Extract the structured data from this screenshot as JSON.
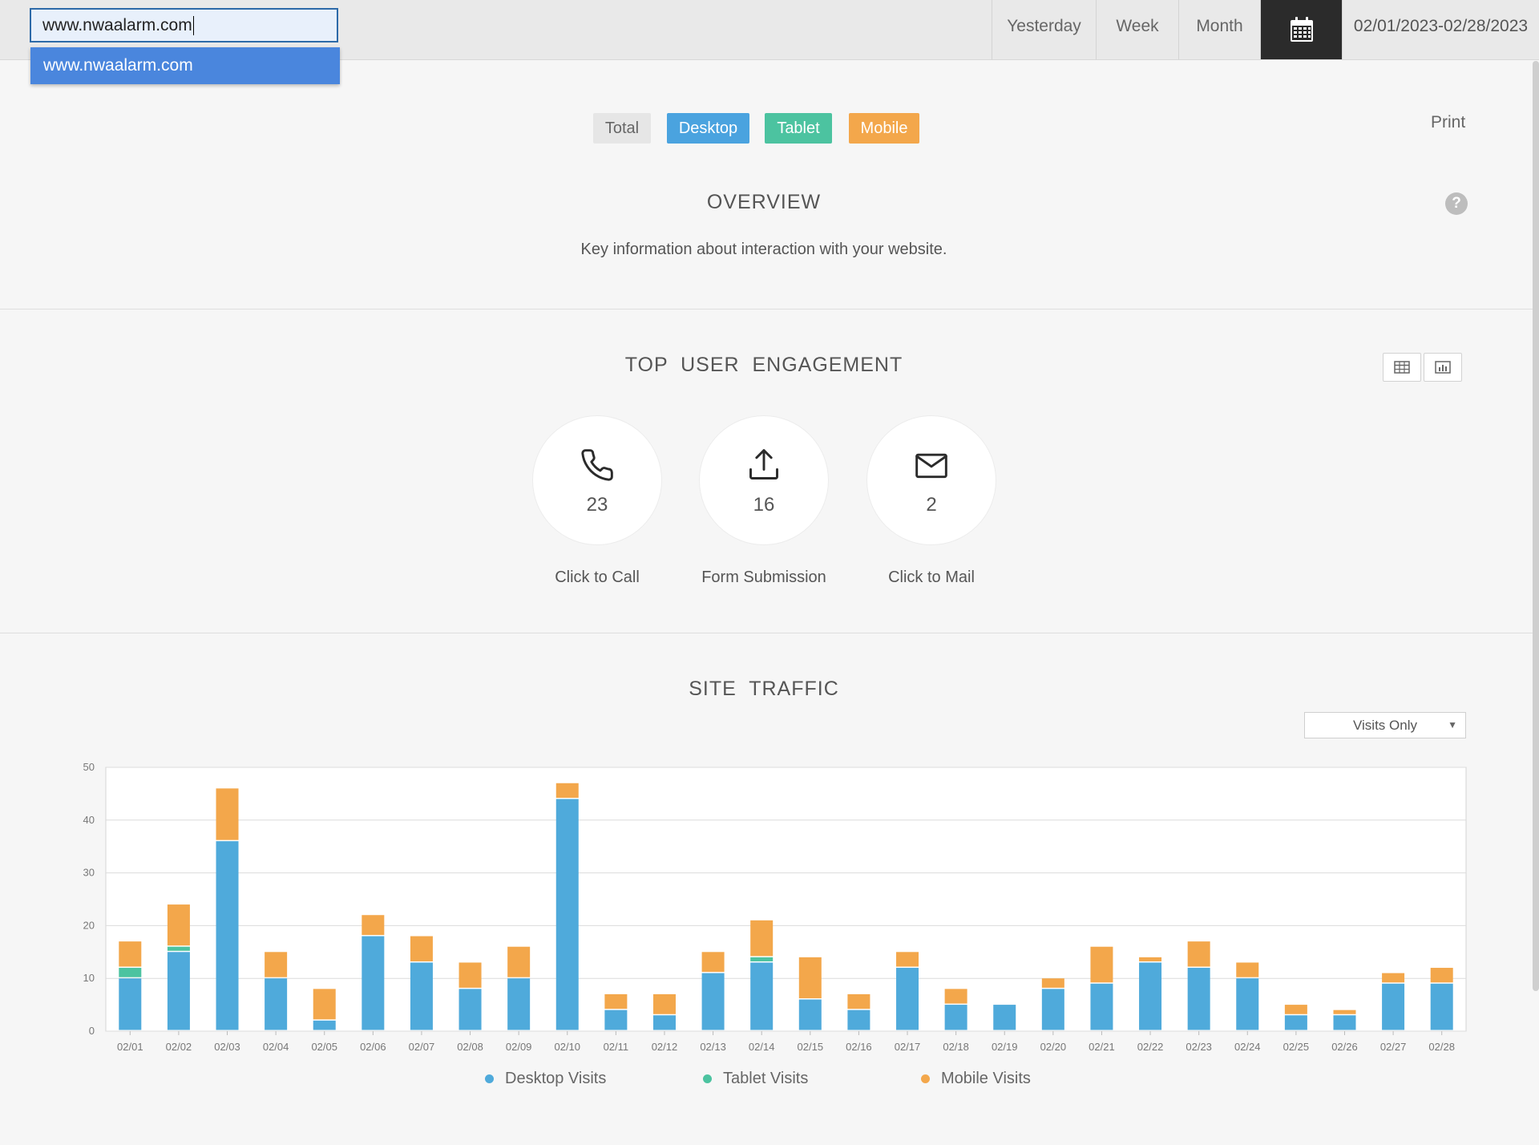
{
  "topbar": {
    "site_input_value": "www.nwaalarm.com",
    "autocomplete_option": "www.nwaalarm.com",
    "yesterday_label": "Yesterday",
    "week_label": "Week",
    "month_label": "Month",
    "calendar_icon": "calendar-icon",
    "date_range": "02/01/2023-02/28/2023"
  },
  "filters": {
    "total": "Total",
    "desktop": "Desktop",
    "tablet": "Tablet",
    "mobile": "Mobile",
    "print": "Print"
  },
  "overview": {
    "title": "OVERVIEW",
    "description": "Key information about interaction with your website.",
    "help_icon": "?"
  },
  "engagement": {
    "title": "TOP  USER  ENGAGEMENT",
    "items": [
      {
        "label": "Click to Call",
        "count": "23",
        "icon": "phone-icon"
      },
      {
        "label": "Form Submission",
        "count": "16",
        "icon": "upload-icon"
      },
      {
        "label": "Click to Mail",
        "count": "2",
        "icon": "mail-icon"
      }
    ]
  },
  "traffic": {
    "title": "SITE  TRAFFIC",
    "select_value": "Visits Only"
  },
  "colors": {
    "desktop": "#4faadb",
    "tablet": "#4cc3a0",
    "mobile": "#f3a74b"
  },
  "chart_data": {
    "type": "bar",
    "stacked": true,
    "categories": [
      "02/01",
      "02/02",
      "02/03",
      "02/04",
      "02/05",
      "02/06",
      "02/07",
      "02/08",
      "02/09",
      "02/10",
      "02/11",
      "02/12",
      "02/13",
      "02/14",
      "02/15",
      "02/16",
      "02/17",
      "02/18",
      "02/19",
      "02/20",
      "02/21",
      "02/22",
      "02/23",
      "02/24",
      "02/25",
      "02/26",
      "02/27",
      "02/28"
    ],
    "series": [
      {
        "name": "Desktop Visits",
        "values": [
          10,
          15,
          36,
          10,
          2,
          18,
          13,
          8,
          10,
          44,
          4,
          3,
          11,
          13,
          6,
          4,
          12,
          5,
          5,
          8,
          9,
          13,
          12,
          10,
          3,
          3,
          9,
          9
        ]
      },
      {
        "name": "Tablet Visits",
        "values": [
          2,
          1,
          0,
          0,
          0,
          0,
          0,
          0,
          0,
          0,
          0,
          0,
          0,
          1,
          0,
          0,
          0,
          0,
          0,
          0,
          0,
          0,
          0,
          0,
          0,
          0,
          0,
          0
        ]
      },
      {
        "name": "Mobile Visits",
        "values": [
          5,
          8,
          10,
          5,
          6,
          4,
          5,
          5,
          6,
          3,
          3,
          4,
          4,
          7,
          8,
          3,
          3,
          3,
          0,
          2,
          7,
          1,
          5,
          3,
          2,
          1,
          2,
          3
        ]
      }
    ],
    "ylim": [
      0,
      50
    ],
    "yticks": [
      0,
      10,
      20,
      30,
      40,
      50
    ],
    "grid": true,
    "legend": "bottom"
  }
}
